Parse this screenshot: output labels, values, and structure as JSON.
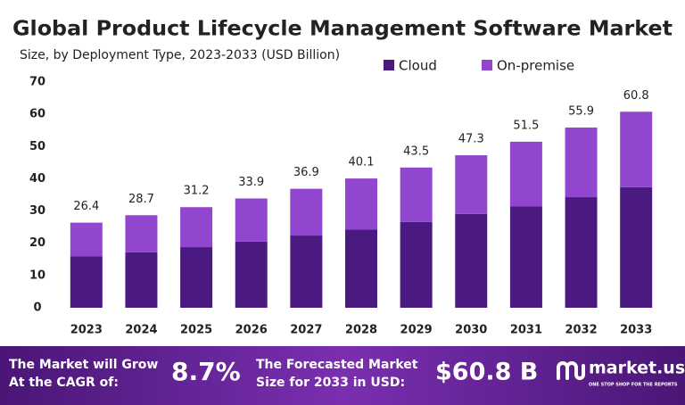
{
  "chart_data": {
    "type": "stacked_bar",
    "title": "Global Product Lifecycle Management Software Market",
    "subtitle": "Size, by Deployment Type, 2023-2033  (USD Billion)",
    "categories": [
      "2023",
      "2024",
      "2025",
      "2026",
      "2027",
      "2028",
      "2029",
      "2030",
      "2031",
      "2032",
      "2033"
    ],
    "series": [
      {
        "name": "Cloud",
        "color": "#4b1a80",
        "values": [
          16.0,
          17.2,
          18.8,
          20.5,
          22.4,
          24.3,
          26.6,
          29.1,
          31.5,
          34.3,
          37.4
        ]
      },
      {
        "name": "On-premise",
        "color": "#9146d0",
        "values": [
          10.4,
          11.5,
          12.4,
          13.4,
          14.5,
          15.8,
          16.9,
          18.2,
          20.0,
          21.6,
          23.4
        ]
      }
    ],
    "totals": [
      26.4,
      28.7,
      31.2,
      33.9,
      36.9,
      40.1,
      43.5,
      47.3,
      51.5,
      55.9,
      60.8
    ],
    "ylim": [
      0,
      70
    ],
    "yticks": [
      0,
      10,
      20,
      30,
      40,
      50,
      60,
      70
    ],
    "grid": false
  },
  "footer": {
    "cagr_text_1": "The Market will Grow",
    "cagr_text_2": "At the CAGR of:",
    "cagr_value": "8.7%",
    "forecast_text_1": "The Forecasted Market",
    "forecast_text_2": "Size for 2033 in USD:",
    "forecast_value": "$60.8 B",
    "brand": "market.us",
    "tagline": "ONE STOP SHOP FOR THE REPORTS"
  }
}
